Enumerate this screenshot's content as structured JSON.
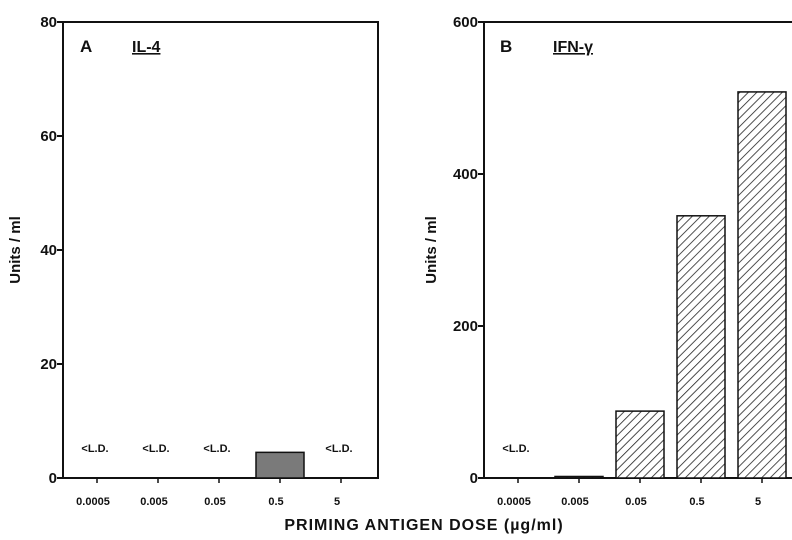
{
  "chart_data": [
    {
      "type": "bar",
      "panel_letter": "A",
      "title": "IL-4",
      "ylabel": "Units / ml",
      "ylim": [
        0,
        80
      ],
      "yticks": [
        0,
        20,
        40,
        60,
        80
      ],
      "categories": [
        "0.0005",
        "0.005",
        "0.05",
        "0.5",
        "5"
      ],
      "values": [
        0,
        0,
        0,
        4.5,
        0
      ],
      "annotations": [
        "<L.D.",
        "<L.D.",
        "<L.D.",
        "",
        "<L.D."
      ],
      "bar_fill": "solid-gray",
      "bar_color": "#7a7a7a"
    },
    {
      "type": "bar",
      "panel_letter": "B",
      "title": "IFN-γ",
      "ylabel": "Units / ml",
      "ylim": [
        0,
        600
      ],
      "yticks": [
        0,
        200,
        400,
        600
      ],
      "categories": [
        "0.0005",
        "0.005",
        "0.05",
        "0.5",
        "5"
      ],
      "values": [
        0,
        2,
        88,
        345,
        508
      ],
      "annotations": [
        "<L.D.",
        "",
        "",
        "",
        ""
      ],
      "bar_fill": "diagonal-hatch",
      "bar_color": "#222222"
    }
  ],
  "shared_xlabel": "PRIMING ANTIGEN DOSE (µg/ml)"
}
